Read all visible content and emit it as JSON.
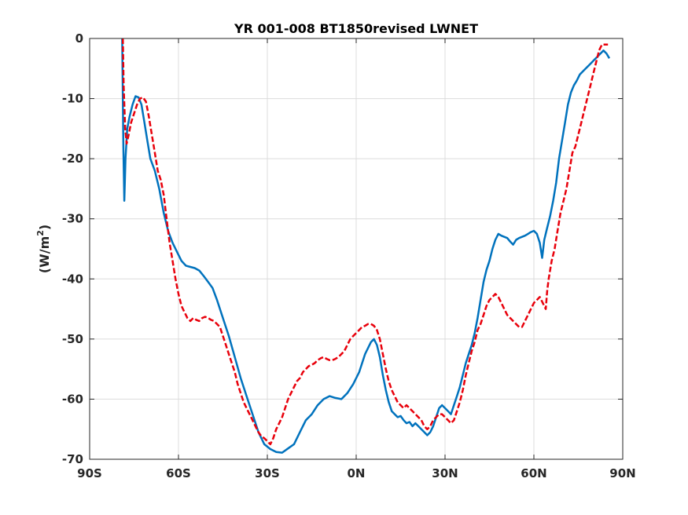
{
  "chart_data": {
    "type": "line",
    "title": "YR 001-008 BT1850revised LWNET",
    "xlabel": "",
    "ylabel_main": "(W/m",
    "ylabel_sup": "2",
    "ylabel_close": ")",
    "xlim": [
      -90,
      90
    ],
    "ylim": [
      -70,
      0
    ],
    "grid": true,
    "xticks": [
      {
        "value": -90,
        "label": "90S"
      },
      {
        "value": -60,
        "label": "60S"
      },
      {
        "value": -30,
        "label": "30S"
      },
      {
        "value": 0,
        "label": "0N"
      },
      {
        "value": 30,
        "label": "30N"
      },
      {
        "value": 60,
        "label": "60N"
      },
      {
        "value": 90,
        "label": "90N"
      }
    ],
    "yticks": [
      {
        "value": 0,
        "label": "0"
      },
      {
        "value": -10,
        "label": "-10"
      },
      {
        "value": -20,
        "label": "-20"
      },
      {
        "value": -30,
        "label": "-30"
      },
      {
        "value": -40,
        "label": "-40"
      },
      {
        "value": -50,
        "label": "-50"
      },
      {
        "value": -60,
        "label": "-60"
      },
      {
        "value": -70,
        "label": "-70"
      }
    ],
    "series": [
      {
        "color": "#0072BD",
        "style": "solid",
        "points": [
          [
            -79,
            0
          ],
          [
            -78.6,
            -18
          ],
          [
            -78.3,
            -27
          ],
          [
            -77.9,
            -20
          ],
          [
            -77.3,
            -15
          ],
          [
            -76.5,
            -13
          ],
          [
            -75.5,
            -11
          ],
          [
            -74.5,
            -9.6
          ],
          [
            -73.5,
            -9.8
          ],
          [
            -72.5,
            -11
          ],
          [
            -71.5,
            -14
          ],
          [
            -70.5,
            -17
          ],
          [
            -69.5,
            -20
          ],
          [
            -68,
            -22
          ],
          [
            -66.5,
            -25
          ],
          [
            -65,
            -29
          ],
          [
            -63.5,
            -32
          ],
          [
            -62,
            -34
          ],
          [
            -60.5,
            -35.5
          ],
          [
            -59,
            -37
          ],
          [
            -57.5,
            -37.8
          ],
          [
            -56,
            -38
          ],
          [
            -54.5,
            -38.2
          ],
          [
            -53,
            -38.6
          ],
          [
            -51.5,
            -39.5
          ],
          [
            -50,
            -40.5
          ],
          [
            -48.5,
            -41.5
          ],
          [
            -47,
            -43.5
          ],
          [
            -45,
            -46.5
          ],
          [
            -43,
            -49.5
          ],
          [
            -41,
            -53
          ],
          [
            -39,
            -56.5
          ],
          [
            -37,
            -59.5
          ],
          [
            -35,
            -62.5
          ],
          [
            -33,
            -65.5
          ],
          [
            -31,
            -67.5
          ],
          [
            -29,
            -68.3
          ],
          [
            -27,
            -68.8
          ],
          [
            -25,
            -68.9
          ],
          [
            -23,
            -68.2
          ],
          [
            -21,
            -67.5
          ],
          [
            -19,
            -65.5
          ],
          [
            -17,
            -63.5
          ],
          [
            -15,
            -62.5
          ],
          [
            -13,
            -61
          ],
          [
            -11,
            -60
          ],
          [
            -9,
            -59.5
          ],
          [
            -7,
            -59.8
          ],
          [
            -5,
            -60
          ],
          [
            -3,
            -59
          ],
          [
            -1,
            -57.5
          ],
          [
            1,
            -55.5
          ],
          [
            3,
            -52.5
          ],
          [
            5,
            -50.5
          ],
          [
            6,
            -50
          ],
          [
            7,
            -51
          ],
          [
            8,
            -53
          ],
          [
            9,
            -56
          ],
          [
            10,
            -58.5
          ],
          [
            11,
            -60.5
          ],
          [
            12,
            -62
          ],
          [
            13,
            -62.5
          ],
          [
            14,
            -63
          ],
          [
            15,
            -62.8
          ],
          [
            16,
            -63.5
          ],
          [
            17,
            -64
          ],
          [
            18,
            -63.8
          ],
          [
            19,
            -64.5
          ],
          [
            20,
            -64
          ],
          [
            21,
            -64.5
          ],
          [
            22,
            -65
          ],
          [
            23,
            -65.5
          ],
          [
            24,
            -66
          ],
          [
            25,
            -65.5
          ],
          [
            26,
            -64.5
          ],
          [
            27,
            -63
          ],
          [
            28,
            -61.5
          ],
          [
            29,
            -61
          ],
          [
            30,
            -61.5
          ],
          [
            31,
            -62
          ],
          [
            32,
            -62.5
          ],
          [
            33,
            -61
          ],
          [
            34,
            -59.5
          ],
          [
            35,
            -58
          ],
          [
            36,
            -56
          ],
          [
            37,
            -54
          ],
          [
            38,
            -52.5
          ],
          [
            39,
            -51
          ],
          [
            40,
            -49
          ],
          [
            41,
            -46.5
          ],
          [
            42,
            -43.5
          ],
          [
            43,
            -40.5
          ],
          [
            44,
            -38.5
          ],
          [
            45,
            -37
          ],
          [
            46,
            -35
          ],
          [
            47,
            -33.5
          ],
          [
            48,
            -32.5
          ],
          [
            49,
            -32.8
          ],
          [
            50,
            -33
          ],
          [
            51,
            -33.2
          ],
          [
            52,
            -33.8
          ],
          [
            53,
            -34.3
          ],
          [
            54,
            -33.5
          ],
          [
            55,
            -33.2
          ],
          [
            56,
            -33
          ],
          [
            57,
            -32.8
          ],
          [
            58,
            -32.5
          ],
          [
            59,
            -32.2
          ],
          [
            60,
            -32
          ],
          [
            61,
            -32.5
          ],
          [
            62,
            -34
          ],
          [
            62.8,
            -36.5
          ],
          [
            63.5,
            -33.5
          ],
          [
            64.5,
            -31.5
          ],
          [
            65.5,
            -29.5
          ],
          [
            66.5,
            -27
          ],
          [
            67.5,
            -24
          ],
          [
            68.5,
            -20
          ],
          [
            69.5,
            -17
          ],
          [
            70.5,
            -14
          ],
          [
            71.5,
            -11
          ],
          [
            72.5,
            -9
          ],
          [
            73.5,
            -7.8
          ],
          [
            74.5,
            -7
          ],
          [
            75.5,
            -6
          ],
          [
            76.5,
            -5.5
          ],
          [
            77.5,
            -5
          ],
          [
            78.5,
            -4.5
          ],
          [
            79.5,
            -4
          ],
          [
            80.5,
            -3.5
          ],
          [
            81.5,
            -3
          ],
          [
            82.5,
            -2.5
          ],
          [
            83.5,
            -2
          ],
          [
            84.5,
            -2.5
          ],
          [
            85.5,
            -3.3
          ]
        ]
      },
      {
        "color": "#E8000B",
        "style": "dashed",
        "points": [
          [
            -78.8,
            0
          ],
          [
            -78.5,
            -8
          ],
          [
            -78,
            -15
          ],
          [
            -77.5,
            -17.5
          ],
          [
            -76.8,
            -16
          ],
          [
            -76,
            -14
          ],
          [
            -75,
            -12.5
          ],
          [
            -74,
            -11
          ],
          [
            -73,
            -10
          ],
          [
            -72,
            -9.8
          ],
          [
            -71,
            -10.5
          ],
          [
            -70,
            -13
          ],
          [
            -69,
            -16
          ],
          [
            -68,
            -19
          ],
          [
            -67,
            -22
          ],
          [
            -66,
            -23.5
          ],
          [
            -65,
            -26
          ],
          [
            -64,
            -30
          ],
          [
            -63,
            -34
          ],
          [
            -62,
            -37
          ],
          [
            -61,
            -40
          ],
          [
            -60,
            -42.5
          ],
          [
            -59,
            -44.5
          ],
          [
            -58,
            -45.5
          ],
          [
            -57,
            -46.5
          ],
          [
            -56,
            -47
          ],
          [
            -55,
            -46.5
          ],
          [
            -54,
            -46.8
          ],
          [
            -53,
            -47
          ],
          [
            -52,
            -46.5
          ],
          [
            -51,
            -46.3
          ],
          [
            -50,
            -46.5
          ],
          [
            -49,
            -46.8
          ],
          [
            -48,
            -47
          ],
          [
            -47,
            -47.5
          ],
          [
            -46,
            -48
          ],
          [
            -45,
            -49.5
          ],
          [
            -44,
            -51
          ],
          [
            -43,
            -52.5
          ],
          [
            -42,
            -54
          ],
          [
            -41,
            -55.5
          ],
          [
            -40,
            -57.5
          ],
          [
            -39,
            -59
          ],
          [
            -38,
            -60.5
          ],
          [
            -37,
            -61.5
          ],
          [
            -36,
            -62.5
          ],
          [
            -35,
            -63.5
          ],
          [
            -34,
            -64.5
          ],
          [
            -33,
            -65.5
          ],
          [
            -32,
            -66.2
          ],
          [
            -31,
            -66.5
          ],
          [
            -30,
            -67
          ],
          [
            -29,
            -67.5
          ],
          [
            -28,
            -66.5
          ],
          [
            -27,
            -65
          ],
          [
            -26,
            -64
          ],
          [
            -25,
            -63
          ],
          [
            -24,
            -61.5
          ],
          [
            -23,
            -60
          ],
          [
            -22,
            -59
          ],
          [
            -21,
            -58
          ],
          [
            -20,
            -57
          ],
          [
            -19,
            -56.5
          ],
          [
            -18,
            -55.5
          ],
          [
            -17,
            -55
          ],
          [
            -16,
            -54.5
          ],
          [
            -15,
            -54.3
          ],
          [
            -14,
            -54
          ],
          [
            -13,
            -53.5
          ],
          [
            -12,
            -53.2
          ],
          [
            -11,
            -53
          ],
          [
            -10,
            -53.3
          ],
          [
            -9,
            -53.5
          ],
          [
            -8,
            -53.5
          ],
          [
            -7,
            -53.3
          ],
          [
            -6,
            -53
          ],
          [
            -5,
            -52.5
          ],
          [
            -4,
            -52
          ],
          [
            -3,
            -51
          ],
          [
            -2,
            -50
          ],
          [
            -1,
            -49.5
          ],
          [
            0,
            -49
          ],
          [
            1,
            -48.5
          ],
          [
            2,
            -48
          ],
          [
            3,
            -47.8
          ],
          [
            4,
            -47.5
          ],
          [
            5,
            -47.5
          ],
          [
            6,
            -47.8
          ],
          [
            7,
            -48.5
          ],
          [
            8,
            -50
          ],
          [
            9,
            -52.5
          ],
          [
            10,
            -55
          ],
          [
            11,
            -57
          ],
          [
            12,
            -58.5
          ],
          [
            13,
            -59.5
          ],
          [
            14,
            -60.5
          ],
          [
            15,
            -61
          ],
          [
            16,
            -61.5
          ],
          [
            17,
            -61
          ],
          [
            18,
            -61.5
          ],
          [
            19,
            -62
          ],
          [
            20,
            -62.5
          ],
          [
            21,
            -63
          ],
          [
            22,
            -63.5
          ],
          [
            23,
            -64.5
          ],
          [
            24,
            -65
          ],
          [
            25,
            -64.5
          ],
          [
            26,
            -63.5
          ],
          [
            27,
            -63
          ],
          [
            28,
            -62.5
          ],
          [
            29,
            -62.5
          ],
          [
            30,
            -63
          ],
          [
            31,
            -63.5
          ],
          [
            32,
            -64
          ],
          [
            33,
            -63.5
          ],
          [
            34,
            -62
          ],
          [
            35,
            -60.5
          ],
          [
            36,
            -58.5
          ],
          [
            37,
            -56
          ],
          [
            38,
            -54
          ],
          [
            39,
            -52
          ],
          [
            40,
            -50.5
          ],
          [
            41,
            -48.5
          ],
          [
            42,
            -47.5
          ],
          [
            43,
            -46
          ],
          [
            44,
            -44.5
          ],
          [
            45,
            -43.5
          ],
          [
            46,
            -43
          ],
          [
            47,
            -42.5
          ],
          [
            48,
            -43
          ],
          [
            49,
            -44
          ],
          [
            50,
            -45
          ],
          [
            51,
            -46
          ],
          [
            52,
            -46.5
          ],
          [
            53,
            -47
          ],
          [
            54,
            -47.5
          ],
          [
            55,
            -48
          ],
          [
            56,
            -48
          ],
          [
            57,
            -47
          ],
          [
            58,
            -46
          ],
          [
            59,
            -45
          ],
          [
            60,
            -44
          ],
          [
            61,
            -43.5
          ],
          [
            62,
            -43
          ],
          [
            63,
            -44
          ],
          [
            64,
            -45
          ],
          [
            64.5,
            -42
          ],
          [
            65,
            -40
          ],
          [
            66,
            -37
          ],
          [
            67,
            -35
          ],
          [
            68,
            -32
          ],
          [
            69,
            -29
          ],
          [
            70,
            -27
          ],
          [
            71,
            -25
          ],
          [
            72,
            -22
          ],
          [
            73,
            -19
          ],
          [
            74,
            -18
          ],
          [
            75,
            -16
          ],
          [
            76,
            -14
          ],
          [
            77,
            -12
          ],
          [
            78,
            -10
          ],
          [
            79,
            -8
          ],
          [
            80,
            -6
          ],
          [
            81,
            -4
          ],
          [
            82,
            -2
          ],
          [
            83,
            -1
          ],
          [
            84,
            -1
          ],
          [
            85,
            -1
          ]
        ]
      }
    ]
  }
}
